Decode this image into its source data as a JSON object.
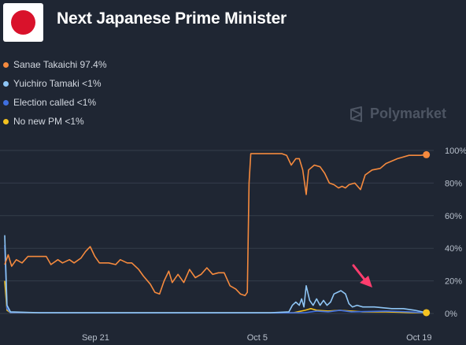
{
  "header": {
    "title": "Next Japanese Prime Minister",
    "flag_icon": "japan-flag-icon"
  },
  "legend": [
    {
      "label": "Sanae Takaichi 97.4%",
      "color": "#f58a3e"
    },
    {
      "label": "Yuichiro Tamaki <1%",
      "color": "#8ec5f5"
    },
    {
      "label": "Election called <1%",
      "color": "#3f6fe0"
    },
    {
      "label": "No new PM <1%",
      "color": "#f4c220"
    }
  ],
  "watermark": {
    "text": "Polymarket",
    "icon": "polymarket-logo-icon"
  },
  "annotation": {
    "icon": "pink-arrow-icon",
    "color": "#ff3d6e"
  },
  "chart_data": {
    "type": "line",
    "x_ticks": [
      "Sep 21",
      "Oct 5",
      "Oct 19"
    ],
    "y_ticks": [
      "100%",
      "80%",
      "60%",
      "40%",
      "20%",
      "0%"
    ],
    "ylim": [
      0,
      100
    ],
    "xlim": [
      "Sep 13",
      "Oct 20"
    ],
    "grid": true,
    "legend_position": "top-left",
    "series": [
      {
        "name": "Sanae Takaichi",
        "color": "#f58a3e",
        "points": [
          [
            "Sep 13",
            30
          ],
          [
            "Sep 13.3",
            36
          ],
          [
            "Sep 13.6",
            29
          ],
          [
            "Sep 14",
            33
          ],
          [
            "Sep 14.5",
            31
          ],
          [
            "Sep 15",
            35
          ],
          [
            "Sep 16",
            35
          ],
          [
            "Sep 16.6",
            35
          ],
          [
            "Sep 17",
            30
          ],
          [
            "Sep 17.6",
            33
          ],
          [
            "Sep 18",
            31
          ],
          [
            "Sep 18.6",
            33
          ],
          [
            "Sep 19",
            31
          ],
          [
            "Sep 19.6",
            34
          ],
          [
            "Sep 20",
            38
          ],
          [
            "Sep 20.4",
            41
          ],
          [
            "Sep 20.8",
            35
          ],
          [
            "Sep 21.2",
            31
          ],
          [
            "Sep 22",
            31
          ],
          [
            "Sep 22.6",
            30
          ],
          [
            "Sep 23",
            33
          ],
          [
            "Sep 23.6",
            31
          ],
          [
            "Sep 24",
            31
          ],
          [
            "Sep 24.6",
            27
          ],
          [
            "Sep 25",
            23
          ],
          [
            "Sep 25.6",
            18
          ],
          [
            "Sep 26",
            13
          ],
          [
            "Sep 26.4",
            12
          ],
          [
            "Sep 26.8",
            20
          ],
          [
            "Sep 27.2",
            26
          ],
          [
            "Sep 27.5",
            19
          ],
          [
            "Sep 28",
            24
          ],
          [
            "Sep 28.5",
            19
          ],
          [
            "Sep 29",
            27
          ],
          [
            "Sep 29.5",
            22
          ],
          [
            "Sep 30",
            24
          ],
          [
            "Sep 30.5",
            28
          ],
          [
            "Oct 1",
            24
          ],
          [
            "Oct 1.5",
            25
          ],
          [
            "Oct 2",
            25
          ],
          [
            "Oct 2.5",
            17
          ],
          [
            "Oct 3",
            15
          ],
          [
            "Oct 3.4",
            12
          ],
          [
            "Oct 3.8",
            11
          ],
          [
            "Oct 4",
            13
          ],
          [
            "Oct 4.15",
            80
          ],
          [
            "Oct 4.3",
            98
          ],
          [
            "Oct 5",
            98
          ],
          [
            "Oct 6",
            98
          ],
          [
            "Oct 7",
            98
          ],
          [
            "Oct 7.4",
            97
          ],
          [
            "Oct 7.8",
            91
          ],
          [
            "Oct 8.2",
            95
          ],
          [
            "Oct 8.5",
            95
          ],
          [
            "Oct 8.8",
            88
          ],
          [
            "Oct 9.1",
            73
          ],
          [
            "Oct 9.3",
            88
          ],
          [
            "Oct 9.8",
            91
          ],
          [
            "Oct 10.3",
            90
          ],
          [
            "Oct 10.7",
            86
          ],
          [
            "Oct 11.1",
            80
          ],
          [
            "Oct 11.5",
            79
          ],
          [
            "Oct 11.9",
            77
          ],
          [
            "Oct 12.2",
            78
          ],
          [
            "Oct 12.5",
            77
          ],
          [
            "Oct 12.8",
            79
          ],
          [
            "Oct 13.3",
            80
          ],
          [
            "Oct 13.8",
            76
          ],
          [
            "Oct 14.2",
            85
          ],
          [
            "Oct 14.8",
            88
          ],
          [
            "Oct 15.5",
            89
          ],
          [
            "Oct 16",
            92
          ],
          [
            "Oct 17",
            95
          ],
          [
            "Oct 18",
            97
          ],
          [
            "Oct 19",
            97
          ],
          [
            "Oct 19.5",
            97.4
          ]
        ]
      },
      {
        "name": "Yuichiro Tamaki",
        "color": "#8ec5f5",
        "points": [
          [
            "Sep 13",
            48
          ],
          [
            "Sep 13.2",
            5
          ],
          [
            "Sep 13.5",
            1
          ],
          [
            "Sep 16",
            0.5
          ],
          [
            "Sep 25",
            0.5
          ],
          [
            "Oct 4",
            0.5
          ],
          [
            "Oct 6",
            0.5
          ],
          [
            "Oct 7.6",
            1
          ],
          [
            "Oct 7.9",
            5
          ],
          [
            "Oct 8.2",
            7
          ],
          [
            "Oct 8.5",
            5
          ],
          [
            "Oct 8.7",
            9
          ],
          [
            "Oct 8.9",
            4
          ],
          [
            "Oct 9.1",
            17
          ],
          [
            "Oct 9.4",
            8
          ],
          [
            "Oct 9.7",
            5
          ],
          [
            "Oct 10",
            9
          ],
          [
            "Oct 10.3",
            5
          ],
          [
            "Oct 10.6",
            8
          ],
          [
            "Oct 10.9",
            5
          ],
          [
            "Oct 11.2",
            7
          ],
          [
            "Oct 11.5",
            12
          ],
          [
            "Oct 11.8",
            13
          ],
          [
            "Oct 12.1",
            14
          ],
          [
            "Oct 12.5",
            12
          ],
          [
            "Oct 12.8",
            6
          ],
          [
            "Oct 13.1",
            4
          ],
          [
            "Oct 13.5",
            5
          ],
          [
            "Oct 14",
            4
          ],
          [
            "Oct 15",
            4
          ],
          [
            "Oct 16.5",
            3
          ],
          [
            "Oct 17.5",
            3
          ],
          [
            "Oct 18.5",
            2
          ],
          [
            "Oct 19.5",
            0.5
          ]
        ]
      },
      {
        "name": "Election called",
        "color": "#3f6fe0",
        "points": [
          [
            "Sep 13",
            42
          ],
          [
            "Sep 13.2",
            3
          ],
          [
            "Sep 13.5",
            0.6
          ],
          [
            "Sep 20",
            0.4
          ],
          [
            "Oct 5",
            0.4
          ],
          [
            "Oct 9",
            0.5
          ],
          [
            "Oct 10",
            1.5
          ],
          [
            "Oct 11",
            1
          ],
          [
            "Oct 12",
            2
          ],
          [
            "Oct 13",
            1
          ],
          [
            "Oct 16",
            1.5
          ],
          [
            "Oct 18",
            1
          ],
          [
            "Oct 19.5",
            0.5
          ]
        ]
      },
      {
        "name": "No new PM",
        "color": "#f4c220",
        "points": [
          [
            "Sep 13",
            20
          ],
          [
            "Sep 13.2",
            2
          ],
          [
            "Sep 13.5",
            0.5
          ],
          [
            "Sep 20",
            0.5
          ],
          [
            "Oct 5",
            0.5
          ],
          [
            "Oct 8",
            0.5
          ],
          [
            "Oct 9",
            2
          ],
          [
            "Oct 9.5",
            3
          ],
          [
            "Oct 10",
            2
          ],
          [
            "Oct 11",
            1.5
          ],
          [
            "Oct 12",
            2
          ],
          [
            "Oct 14",
            1
          ],
          [
            "Oct 16",
            1
          ],
          [
            "Oct 18",
            0.6
          ],
          [
            "Oct 19.5",
            0.5
          ]
        ]
      }
    ]
  }
}
